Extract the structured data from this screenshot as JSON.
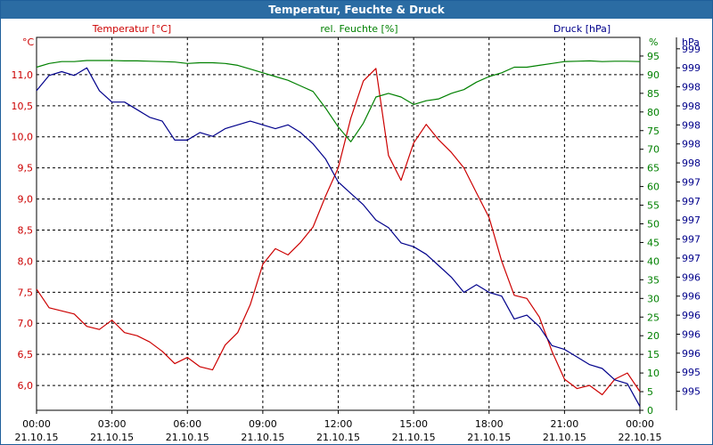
{
  "window": {
    "title": "Temperatur, Feuchte & Druck"
  },
  "colors": {
    "temperature": "#cc0000",
    "humidity": "#008000",
    "pressure": "#00008b",
    "title_bar": "#2b6ca3",
    "grid": "#000000",
    "text": "#000000"
  },
  "chart_data": {
    "type": "line",
    "title": "Temperatur, Feuchte & Druck",
    "grid": true,
    "x_ticks": [
      {
        "hour": 0,
        "time": "00:00",
        "date": "21.10.15"
      },
      {
        "hour": 3,
        "time": "03:00",
        "date": "21.10.15"
      },
      {
        "hour": 6,
        "time": "06:00",
        "date": "21.10.15"
      },
      {
        "hour": 9,
        "time": "09:00",
        "date": "21.10.15"
      },
      {
        "hour": 12,
        "time": "12:00",
        "date": "21.10.15"
      },
      {
        "hour": 15,
        "time": "15:00",
        "date": "21.10.15"
      },
      {
        "hour": 18,
        "time": "18:00",
        "date": "21.10.15"
      },
      {
        "hour": 21,
        "time": "21:00",
        "date": "21.10.15"
      },
      {
        "hour": 24,
        "time": "00:00",
        "date": "22.10.15"
      }
    ],
    "axes": {
      "temperature": {
        "label": "Temperatur [°C]",
        "unit": "°C",
        "range": [
          5.6,
          11.6
        ],
        "ticks": [
          "6,0",
          "6,5",
          "7,0",
          "7,5",
          "8,0",
          "8,5",
          "9,0",
          "9,5",
          "10,0",
          "10,5",
          "11,0"
        ],
        "tick_values": [
          6.0,
          6.5,
          7.0,
          7.5,
          8.0,
          8.5,
          9.0,
          9.5,
          10.0,
          10.5,
          11.0
        ]
      },
      "humidity": {
        "label": "rel. Feuchte [%]",
        "unit": "%",
        "range": [
          0,
          100
        ],
        "ticks": [
          "0",
          "5",
          "10",
          "15",
          "20",
          "25",
          "30",
          "35",
          "40",
          "45",
          "50",
          "55",
          "60",
          "65",
          "70",
          "75",
          "80",
          "85",
          "90",
          "95"
        ],
        "tick_values": [
          0,
          5,
          10,
          15,
          20,
          25,
          30,
          35,
          40,
          45,
          50,
          55,
          60,
          65,
          70,
          75,
          80,
          85,
          90,
          95
        ]
      },
      "pressure": {
        "label": "Druck [hPa]",
        "unit": "hPa",
        "range": [
          994.8,
          999.7
        ],
        "ticks": [
          "995",
          "995",
          "996",
          "996",
          "996",
          "996",
          "996",
          "997",
          "997",
          "997",
          "997",
          "997",
          "998",
          "998",
          "998",
          "998",
          "998",
          "999",
          "999",
          "999",
          "999"
        ],
        "tick_values": [
          995.05,
          995.3,
          995.55,
          995.8,
          996.05,
          996.3,
          996.55,
          996.8,
          997.05,
          997.3,
          997.55,
          997.8,
          998.05,
          998.3,
          998.55,
          998.8,
          999.05,
          999.3,
          999.55,
          999.8,
          1000.05
        ]
      }
    },
    "series": [
      {
        "name": "Temperatur [°C]",
        "axis": "temperature",
        "color": "#cc0000",
        "x": [
          0,
          0.5,
          1,
          1.5,
          2,
          2.5,
          3,
          3.5,
          4,
          4.5,
          5,
          5.5,
          6,
          6.5,
          7,
          7.5,
          8,
          8.5,
          9,
          9.5,
          10,
          10.5,
          11,
          11.5,
          12,
          12.5,
          13,
          13.5,
          14,
          14.5,
          15,
          15.5,
          16,
          16.5,
          17,
          17.5,
          18,
          18.5,
          19,
          19.5,
          20,
          20.5,
          21,
          21.5,
          22,
          22.5,
          23,
          23.5,
          24
        ],
        "values": [
          7.55,
          7.25,
          7.2,
          7.15,
          6.95,
          6.9,
          7.05,
          6.85,
          6.8,
          6.7,
          6.55,
          6.35,
          6.45,
          6.3,
          6.25,
          6.65,
          6.85,
          7.3,
          7.95,
          8.2,
          8.1,
          8.3,
          8.55,
          9.05,
          9.5,
          10.3,
          10.9,
          11.1,
          9.7,
          9.3,
          9.9,
          10.2,
          9.95,
          9.75,
          9.5,
          9.1,
          8.7,
          8.0,
          7.45,
          7.4,
          7.1,
          6.55,
          6.1,
          5.95,
          6.0,
          5.85,
          6.1,
          6.2,
          5.9
        ]
      },
      {
        "name": "rel. Feuchte [%]",
        "axis": "humidity",
        "color": "#008000",
        "x": [
          0,
          0.5,
          1,
          1.5,
          2,
          2.5,
          3,
          3.5,
          4,
          4.5,
          5,
          5.5,
          6,
          6.5,
          7,
          7.5,
          8,
          8.5,
          9,
          9.5,
          10,
          10.5,
          11,
          11.5,
          12,
          12.5,
          13,
          13.5,
          14,
          14.5,
          15,
          15.5,
          16,
          16.5,
          17,
          17.5,
          18,
          18.5,
          19,
          19.5,
          20,
          20.5,
          21,
          21.5,
          22,
          22.5,
          23,
          23.5,
          24
        ],
        "values": [
          92,
          93,
          93.5,
          93.5,
          93.8,
          93.8,
          93.8,
          93.7,
          93.7,
          93.6,
          93.5,
          93.4,
          93,
          93.2,
          93.2,
          93,
          92.5,
          91.5,
          90.5,
          89.5,
          88.5,
          87,
          85.5,
          81,
          76,
          72,
          77,
          84,
          85,
          84,
          82,
          83,
          83.5,
          85,
          86,
          88,
          89.5,
          90.5,
          92,
          92,
          92.5,
          93,
          93.5,
          93.6,
          93.7,
          93.5,
          93.6,
          93.6,
          93.5
        ]
      },
      {
        "name": "Druck [hPa]",
        "axis": "pressure",
        "color": "#00008b",
        "x": [
          0,
          0.5,
          1,
          1.5,
          2,
          2.5,
          3,
          3.5,
          4,
          4.5,
          5,
          5.5,
          6,
          6.5,
          7,
          7.5,
          8,
          8.5,
          9,
          9.5,
          10,
          10.5,
          11,
          11.5,
          12,
          12.5,
          13,
          13.5,
          14,
          14.5,
          15,
          15.5,
          16,
          16.5,
          17,
          17.5,
          18,
          18.5,
          19,
          19.5,
          20,
          20.5,
          21,
          21.5,
          22,
          22.5,
          23,
          23.5,
          24
        ],
        "values": [
          999.0,
          999.2,
          999.25,
          999.2,
          999.3,
          999.0,
          998.85,
          998.85,
          998.75,
          998.65,
          998.6,
          998.35,
          998.35,
          998.45,
          998.4,
          998.5,
          998.55,
          998.6,
          998.55,
          998.5,
          998.55,
          998.45,
          998.3,
          998.1,
          997.8,
          997.65,
          997.5,
          997.3,
          997.2,
          997.0,
          996.95,
          996.85,
          996.7,
          996.55,
          996.35,
          996.45,
          996.35,
          996.3,
          996.0,
          996.05,
          995.9,
          995.65,
          995.6,
          995.5,
          995.4,
          995.35,
          995.2,
          995.15,
          994.85
        ]
      }
    ]
  }
}
